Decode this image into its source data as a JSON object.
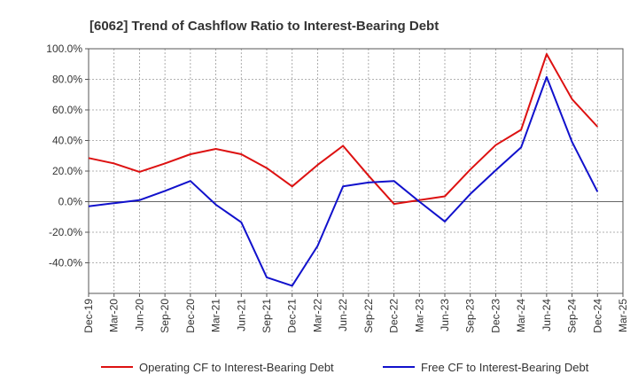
{
  "chart_data": {
    "type": "line",
    "title": "[6062]  Trend of Cashflow Ratio to Interest-Bearing Debt",
    "xlabel": "",
    "ylabel": "",
    "x": [
      "Dec-19",
      "Mar-20",
      "Jun-20",
      "Sep-20",
      "Dec-20",
      "Mar-21",
      "Jun-21",
      "Sep-21",
      "Dec-21",
      "Mar-22",
      "Jun-22",
      "Sep-22",
      "Dec-22",
      "Mar-23",
      "Jun-23",
      "Sep-23",
      "Dec-23",
      "Mar-24",
      "Jun-24",
      "Sep-24",
      "Dec-24",
      "Mar-25"
    ],
    "ylim": [
      -60,
      100
    ],
    "yticks": [
      100,
      80,
      60,
      40,
      20,
      0,
      -20,
      -40
    ],
    "ytick_labels": [
      "100.0%",
      "80.0%",
      "60.0%",
      "40.0%",
      "20.0%",
      "0.0%",
      "-20.0%",
      "-40.0%"
    ],
    "grid": true,
    "legend_position": "bottom",
    "series": [
      {
        "name": "Operating CF to Interest-Bearing Debt",
        "color": "#dd1111",
        "values": [
          28.5,
          25,
          19.5,
          25,
          31,
          34.5,
          31,
          22,
          10,
          24,
          36.5,
          17,
          -1.5,
          1,
          3.5,
          21,
          37,
          47,
          96.5,
          67,
          49,
          null
        ]
      },
      {
        "name": "Free CF to Interest-Bearing Debt",
        "color": "#1111cc",
        "values": [
          -3,
          -1,
          1,
          7,
          13.5,
          -2,
          -13.5,
          -49.5,
          -55,
          -29,
          10,
          12.5,
          13.5,
          0,
          -13,
          5,
          20.5,
          35.5,
          81.5,
          39,
          6.5,
          null
        ]
      }
    ]
  }
}
